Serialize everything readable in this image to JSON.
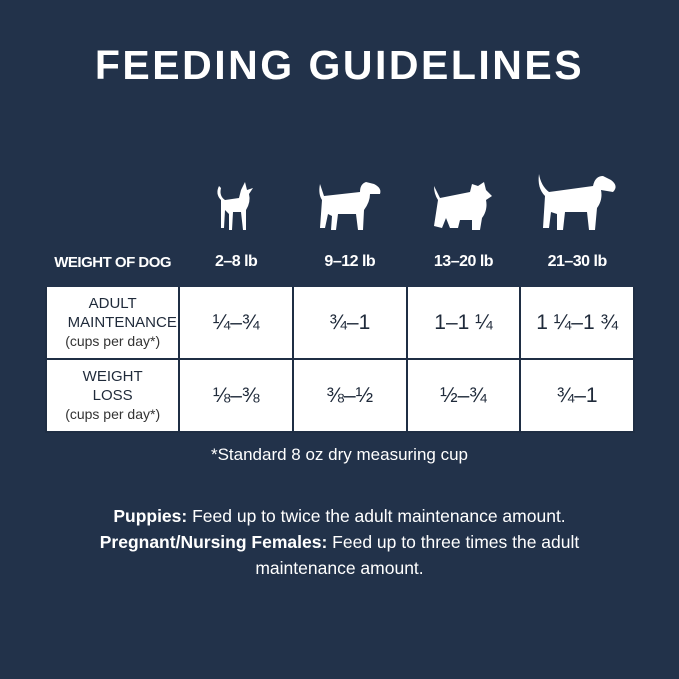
{
  "title": "FEEDING GUIDELINES",
  "dog_icons": [
    "chihuahua-icon",
    "terrier-icon",
    "scottie-icon",
    "beagle-icon"
  ],
  "table": {
    "header": {
      "label": "WEIGHT OF DOG",
      "columns": [
        "2–8 lb",
        "9–12 lb",
        "13–20 lb",
        "21–30 lb"
      ]
    },
    "rows": [
      {
        "label": "ADULT MAINTENANCE",
        "sub": "(cups per day*)",
        "values": [
          "¼–¾",
          "¾–1",
          "1–1 ¼",
          "1 ¼–1 ¾"
        ]
      },
      {
        "label": "WEIGHT LOSS",
        "sub": "(cups per day*)",
        "values": [
          "⅛–⅜",
          "⅜–½",
          "½–¾",
          "¾–1"
        ]
      }
    ]
  },
  "footnote": "*Standard 8 oz dry measuring cup",
  "puppies": {
    "label": "Puppies:",
    "text": " Feed up to twice the adult maintenance amount."
  },
  "pregnant": {
    "label": "Pregnant/Nursing Females:",
    "text": " Feed up to three times the adult maintenance amount."
  },
  "colors": {
    "background": "#22324a",
    "table_bg": "#ffffff"
  }
}
